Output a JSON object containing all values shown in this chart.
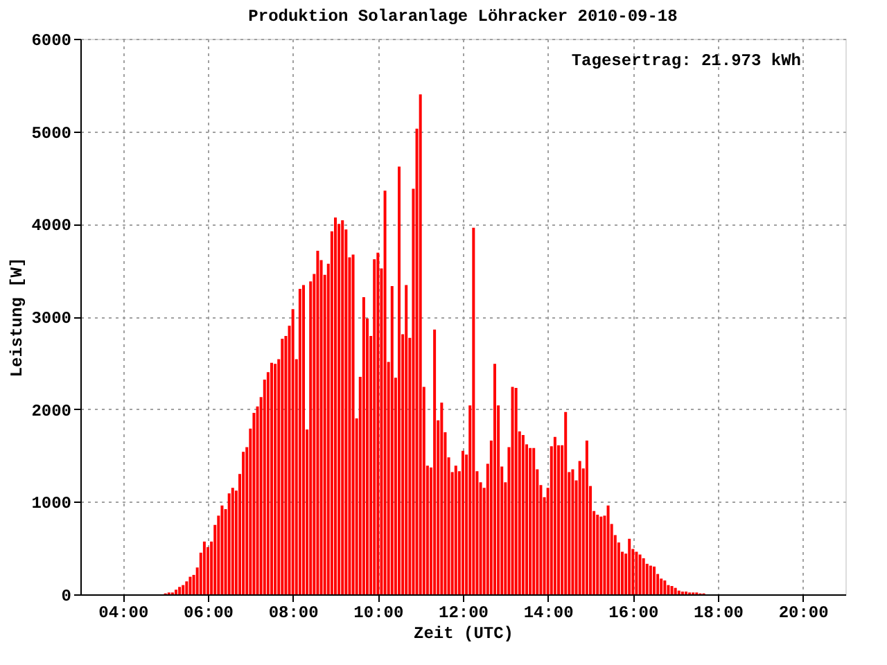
{
  "chart_data": {
    "type": "bar",
    "title": "Produktion Solaranlage Löhracker 2010-09-18",
    "xlabel": "Zeit (UTC)",
    "ylabel": "Leistung [W]",
    "annotations": [
      "Tagesertrag: 21.973 kWh"
    ],
    "x": [
      "2010-09-18T05:00",
      "2010-09-18T05:05",
      "2010-09-18T05:10",
      "2010-09-18T05:15",
      "2010-09-18T05:20",
      "2010-09-18T05:25",
      "2010-09-18T05:30",
      "2010-09-18T05:35",
      "2010-09-18T05:40",
      "2010-09-18T05:45",
      "2010-09-18T05:50",
      "2010-09-18T05:55",
      "2010-09-18T06:00",
      "2010-09-18T06:05",
      "2010-09-18T06:10",
      "2010-09-18T06:15",
      "2010-09-18T06:20",
      "2010-09-18T06:25",
      "2010-09-18T06:30",
      "2010-09-18T06:35",
      "2010-09-18T06:40",
      "2010-09-18T06:45",
      "2010-09-18T06:50",
      "2010-09-18T06:55",
      "2010-09-18T07:00",
      "2010-09-18T07:05",
      "2010-09-18T07:10",
      "2010-09-18T07:15",
      "2010-09-18T07:20",
      "2010-09-18T07:25",
      "2010-09-18T07:30",
      "2010-09-18T07:35",
      "2010-09-18T07:40",
      "2010-09-18T07:45",
      "2010-09-18T07:50",
      "2010-09-18T07:55",
      "2010-09-18T08:00",
      "2010-09-18T08:05",
      "2010-09-18T08:10",
      "2010-09-18T08:15",
      "2010-09-18T08:20",
      "2010-09-18T08:25",
      "2010-09-18T08:30",
      "2010-09-18T08:35",
      "2010-09-18T08:40",
      "2010-09-18T08:45",
      "2010-09-18T08:50",
      "2010-09-18T08:55",
      "2010-09-18T09:00",
      "2010-09-18T09:05",
      "2010-09-18T09:10",
      "2010-09-18T09:15",
      "2010-09-18T09:20",
      "2010-09-18T09:25",
      "2010-09-18T09:30",
      "2010-09-18T09:35",
      "2010-09-18T09:40",
      "2010-09-18T09:45",
      "2010-09-18T09:50",
      "2010-09-18T09:55",
      "2010-09-18T10:00",
      "2010-09-18T10:05",
      "2010-09-18T10:10",
      "2010-09-18T10:15",
      "2010-09-18T10:20",
      "2010-09-18T10:25",
      "2010-09-18T10:30",
      "2010-09-18T10:35",
      "2010-09-18T10:40",
      "2010-09-18T10:45",
      "2010-09-18T10:50",
      "2010-09-18T10:55",
      "2010-09-18T11:00",
      "2010-09-18T11:05",
      "2010-09-18T11:10",
      "2010-09-18T11:15",
      "2010-09-18T11:20",
      "2010-09-18T11:25",
      "2010-09-18T11:30",
      "2010-09-18T11:35",
      "2010-09-18T11:40",
      "2010-09-18T11:45",
      "2010-09-18T11:50",
      "2010-09-18T11:55",
      "2010-09-18T12:00",
      "2010-09-18T12:05",
      "2010-09-18T12:10",
      "2010-09-18T12:15",
      "2010-09-18T12:20",
      "2010-09-18T12:25",
      "2010-09-18T12:30",
      "2010-09-18T12:35",
      "2010-09-18T12:40",
      "2010-09-18T12:45",
      "2010-09-18T12:50",
      "2010-09-18T12:55",
      "2010-09-18T13:00",
      "2010-09-18T13:05",
      "2010-09-18T13:10",
      "2010-09-18T13:15",
      "2010-09-18T13:20",
      "2010-09-18T13:25",
      "2010-09-18T13:30",
      "2010-09-18T13:35",
      "2010-09-18T13:40",
      "2010-09-18T13:45",
      "2010-09-18T13:50",
      "2010-09-18T13:55",
      "2010-09-18T14:00",
      "2010-09-18T14:05",
      "2010-09-18T14:10",
      "2010-09-18T14:15",
      "2010-09-18T14:20",
      "2010-09-18T14:25",
      "2010-09-18T14:30",
      "2010-09-18T14:35",
      "2010-09-18T14:40",
      "2010-09-18T14:45",
      "2010-09-18T14:50",
      "2010-09-18T14:55",
      "2010-09-18T15:00",
      "2010-09-18T15:05",
      "2010-09-18T15:10",
      "2010-09-18T15:15",
      "2010-09-18T15:20",
      "2010-09-18T15:25",
      "2010-09-18T15:30",
      "2010-09-18T15:35",
      "2010-09-18T15:40",
      "2010-09-18T15:45",
      "2010-09-18T15:50",
      "2010-09-18T15:55",
      "2010-09-18T16:00",
      "2010-09-18T16:05",
      "2010-09-18T16:10",
      "2010-09-18T16:15",
      "2010-09-18T16:20",
      "2010-09-18T16:25",
      "2010-09-18T16:30",
      "2010-09-18T16:35",
      "2010-09-18T16:40",
      "2010-09-18T16:45",
      "2010-09-18T16:50",
      "2010-09-18T16:55",
      "2010-09-18T17:00",
      "2010-09-18T17:05",
      "2010-09-18T17:10",
      "2010-09-18T17:15",
      "2010-09-18T17:20",
      "2010-09-18T17:25",
      "2010-09-18T17:30",
      "2010-09-18T17:35",
      "2010-09-18T17:40"
    ],
    "series": [
      {
        "color": "#ff0000",
        "values": [
          10,
          20,
          20,
          50,
          80,
          100,
          140,
          190,
          210,
          290,
          450,
          570,
          510,
          570,
          750,
          850,
          960,
          920,
          1090,
          1150,
          1120,
          1300,
          1540,
          1590,
          1790,
          1960,
          2030,
          2130,
          2320,
          2400,
          2500,
          2490,
          2540,
          2760,
          2790,
          2900,
          3080,
          2540,
          3300,
          3340,
          1780,
          3380,
          3460,
          3710,
          3610,
          3450,
          3570,
          3920,
          4070,
          4000,
          4040,
          3940,
          3640,
          3670,
          1900,
          2350,
          3210,
          2980,
          2790,
          3620,
          3690,
          3520,
          4360,
          2510,
          3330,
          2340,
          4620,
          2810,
          3340,
          2770,
          4380,
          5030,
          5400,
          2240,
          1390,
          1370,
          2860,
          1880,
          2070,
          1750,
          1480,
          1320,
          1390,
          1330,
          1550,
          1510,
          2040,
          3960,
          1330,
          1210,
          1150,
          1410,
          1660,
          2490,
          2040,
          1380,
          1210,
          1590,
          2240,
          2230,
          1760,
          1720,
          1620,
          1580,
          1580,
          1350,
          1180,
          1050,
          1150,
          1600,
          1700,
          1610,
          1610,
          1970,
          1320,
          1350,
          1230,
          1440,
          1360,
          1660,
          1170,
          900,
          860,
          840,
          850,
          960,
          760,
          640,
          560,
          460,
          440,
          600,
          490,
          460,
          430,
          390,
          330,
          310,
          300,
          220,
          170,
          150,
          100,
          90,
          70,
          40,
          30,
          30,
          20,
          20,
          20,
          10,
          10
        ]
      }
    ],
    "xlim": [
      "2010-09-18T03:00",
      "2010-09-18T21:00"
    ],
    "xticks": [
      {
        "value": "2010-09-18T04:00",
        "label": "04:00"
      },
      {
        "value": "2010-09-18T06:00",
        "label": "06:00"
      },
      {
        "value": "2010-09-18T08:00",
        "label": "08:00"
      },
      {
        "value": "2010-09-18T10:00",
        "label": "10:00"
      },
      {
        "value": "2010-09-18T12:00",
        "label": "12:00"
      },
      {
        "value": "2010-09-18T14:00",
        "label": "14:00"
      },
      {
        "value": "2010-09-18T16:00",
        "label": "16:00"
      },
      {
        "value": "2010-09-18T18:00",
        "label": "18:00"
      },
      {
        "value": "2010-09-18T20:00",
        "label": "20:00"
      }
    ],
    "ylim": [
      0,
      6000
    ],
    "yticks": [
      0,
      1000,
      2000,
      3000,
      4000,
      5000,
      6000
    ],
    "grid": true
  }
}
